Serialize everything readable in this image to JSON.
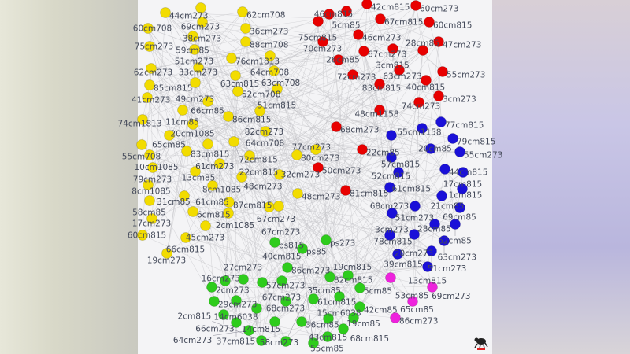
{
  "groups": [
    {
      "name": "yellow",
      "color": "#f2dc00",
      "labels": [
        "44cm273",
        "69cm273",
        "62cm708",
        "60cm708",
        "38cm273",
        "36cm273",
        "59cm85",
        "88cm708",
        "75cm273",
        "51cm273",
        "76cm1813",
        "64cm708",
        "62cm273",
        "33cm273",
        "63cm815",
        "63cm708",
        "85cm815",
        "49cm273",
        "52cm708",
        "51cm815",
        "41cm273",
        "66cm85",
        "11cm85",
        "86cm815",
        "82cm273",
        "74cm1813",
        "20cm1085",
        "64cm708",
        "65cm85",
        "55cm708",
        "83cm815",
        "61cm273",
        "72cm815",
        "10cm1085",
        "22cm815",
        "80cm273",
        "79cm273",
        "13cm85",
        "8cm1085",
        "48cm273",
        "32cm273",
        "8cm1085",
        "61cm85",
        "48cm273",
        "31cm85",
        "58cm85",
        "87cm815",
        "6cm815",
        "2cm1085",
        "67cm273",
        "67cm273",
        "17cm273",
        "45cm273",
        "60cm815",
        "66cm815",
        "19cm273",
        "77cm273"
      ]
    },
    {
      "name": "red",
      "color": "#e80000",
      "labels": [
        "42cm815",
        "60cm273",
        "46cm815",
        "5cm85",
        "75cm815",
        "67cm815",
        "60cm815",
        "46cm273",
        "70cm273",
        "47cm273",
        "67cm273",
        "3cm815",
        "28cm85",
        "26cm85",
        "55cm273",
        "63cm273",
        "72cm273",
        "40cm815",
        "83cm815",
        "3cm273",
        "74cm273",
        "48cm1158",
        "68cm273",
        "22cm85",
        "50cm273",
        "81cm815"
      ]
    },
    {
      "name": "blue",
      "color": "#1a10d8",
      "labels": [
        "77cm815",
        "55cm1158",
        "57cm815",
        "79cm815",
        "20cm85",
        "55cm273",
        "52cm815",
        "44cm815",
        "17cm815",
        "61cm815",
        "68cm273",
        "1cm815",
        "21cm85",
        "51cm273",
        "69cm85",
        "3cm273",
        "28cm85",
        "62cm85",
        "78cm815",
        "20cm273",
        "63cm273",
        "39cm815",
        "51cm273",
        "13cm815"
      ]
    },
    {
      "name": "green",
      "color": "#2ecc1c",
      "labels": [
        "ps815",
        "ps85",
        "ps273",
        "86cm273",
        "82cm815",
        "19cm815",
        "5cm85",
        "2cm273",
        "16cm273",
        "27cm273",
        "57cm273",
        "67cm273",
        "29cm273",
        "14cm6038",
        "68cm273",
        "14cm815",
        "61cm815",
        "15cm6038",
        "42cm85",
        "66cm273",
        "37cm815",
        "58cm273",
        "36cm85",
        "43cm815",
        "19cm85",
        "68cm815",
        "64cm273",
        "2cm815",
        "35cm85",
        "40cm815",
        "55cm85"
      ]
    },
    {
      "name": "magenta",
      "color": "#ee22dd",
      "labels": [
        "53cm85",
        "69cm273",
        "65cm85",
        "86cm273"
      ]
    }
  ],
  "logo": {
    "icon": "bug-logo-icon"
  }
}
